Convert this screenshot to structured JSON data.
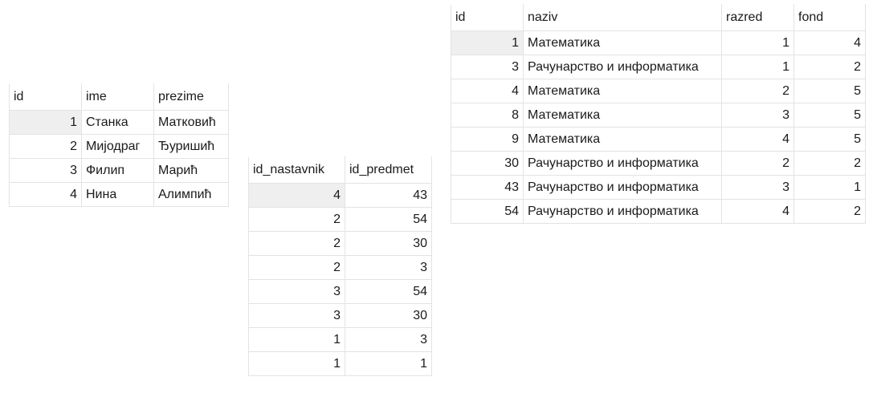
{
  "nastavnik": {
    "columns": [
      "id",
      "ime",
      "prezime"
    ],
    "rows": [
      [
        "1",
        "Станка",
        "Матковић"
      ],
      [
        "2",
        "Мијодраг",
        "Ђуришић"
      ],
      [
        "3",
        "Филип",
        "Марић"
      ],
      [
        "4",
        "Нина",
        "Алимпић"
      ]
    ]
  },
  "predaje": {
    "columns": [
      "id_nastavnik",
      "id_predmet"
    ],
    "rows": [
      [
        "4",
        "43"
      ],
      [
        "2",
        "54"
      ],
      [
        "2",
        "30"
      ],
      [
        "2",
        "3"
      ],
      [
        "3",
        "54"
      ],
      [
        "3",
        "30"
      ],
      [
        "1",
        "3"
      ],
      [
        "1",
        "1"
      ]
    ]
  },
  "predmet": {
    "columns": [
      "id",
      "naziv",
      "razred",
      "fond"
    ],
    "rows": [
      [
        "1",
        "Математика",
        "1",
        "4"
      ],
      [
        "3",
        "Рачунарство и информатика",
        "1",
        "2"
      ],
      [
        "4",
        "Математика",
        "2",
        "5"
      ],
      [
        "8",
        "Математика",
        "3",
        "5"
      ],
      [
        "9",
        "Математика",
        "4",
        "5"
      ],
      [
        "30",
        "Рачунарство и информатика",
        "2",
        "2"
      ],
      [
        "43",
        "Рачунарство и информатика",
        "3",
        "1"
      ],
      [
        "54",
        "Рачунарство и информатика",
        "4",
        "2"
      ]
    ]
  }
}
